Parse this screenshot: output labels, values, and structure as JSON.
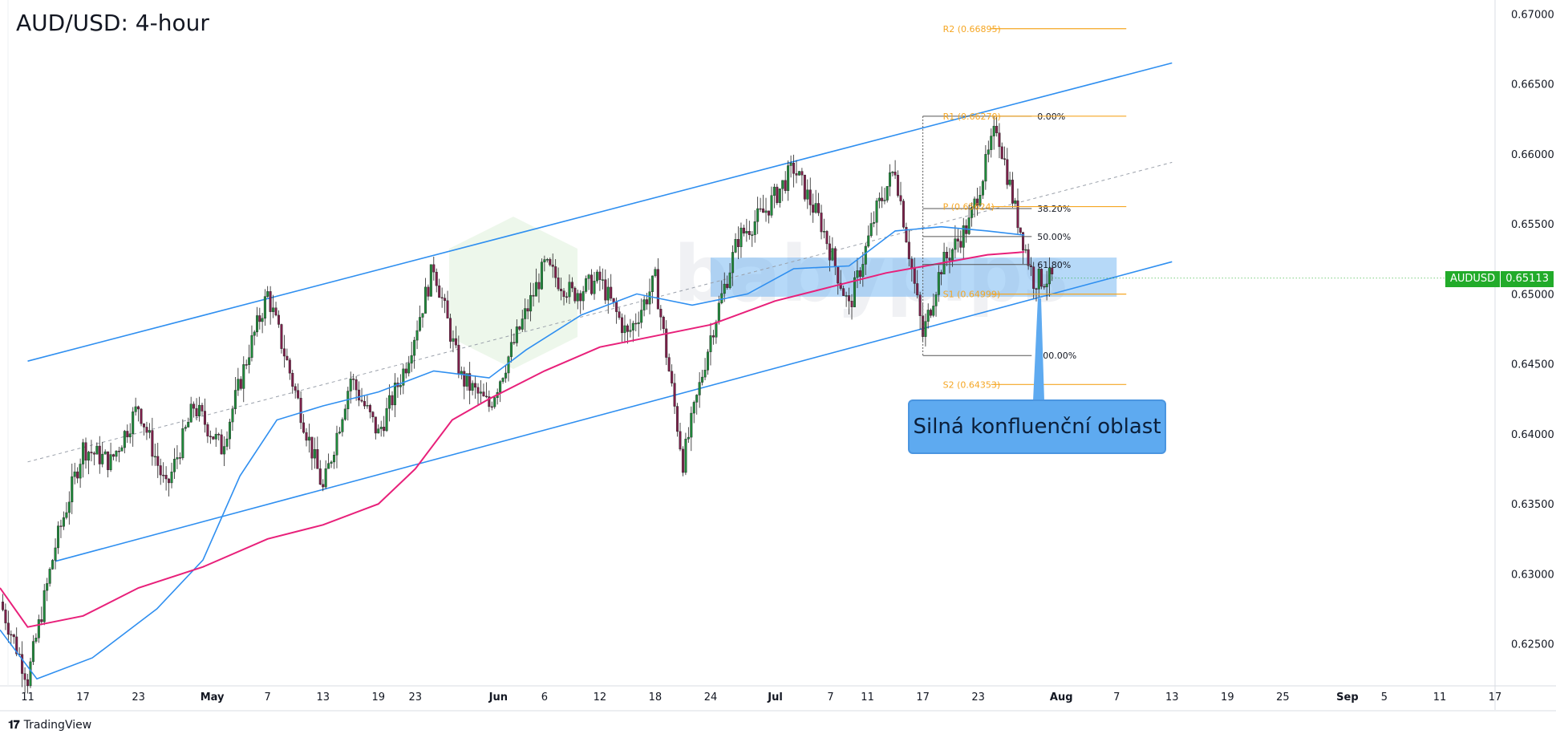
{
  "header": {
    "title": "AUD/USD: 4-hour"
  },
  "footer": {
    "brand": "TradingView"
  },
  "callout": {
    "text": "Silná konfluenční oblast"
  },
  "price_badge": {
    "symbol": "AUDUSD",
    "value": "0.65113",
    "color": "#22ab2a"
  },
  "chart_data": {
    "type": "candlestick",
    "title": "AUD/USD: 4-hour",
    "xlabel": "",
    "ylabel": "",
    "ylim": [
      0.622,
      0.671
    ],
    "y_ticks": [
      "0.62500",
      "0.63000",
      "0.63500",
      "0.64000",
      "0.64500",
      "0.65000",
      "0.65500",
      "0.66000",
      "0.66500",
      "0.67000"
    ],
    "x_ticks": [
      {
        "label": "11",
        "date": "2023-04-11"
      },
      {
        "label": "17",
        "date": "2023-04-17"
      },
      {
        "label": "23",
        "date": "2023-04-23"
      },
      {
        "label": "May",
        "date": "2023-05-01"
      },
      {
        "label": "7",
        "date": "2023-05-07"
      },
      {
        "label": "13",
        "date": "2023-05-13"
      },
      {
        "label": "19",
        "date": "2023-05-19"
      },
      {
        "label": "23",
        "date": "2023-05-23"
      },
      {
        "label": "Jun",
        "date": "2023-06-01"
      },
      {
        "label": "6",
        "date": "2023-06-06"
      },
      {
        "label": "12",
        "date": "2023-06-12"
      },
      {
        "label": "18",
        "date": "2023-06-18"
      },
      {
        "label": "24",
        "date": "2023-06-24"
      },
      {
        "label": "Jul",
        "date": "2023-07-01"
      },
      {
        "label": "7",
        "date": "2023-07-07"
      },
      {
        "label": "11",
        "date": "2023-07-11"
      },
      {
        "label": "17",
        "date": "2023-07-17"
      },
      {
        "label": "23",
        "date": "2023-07-23"
      },
      {
        "label": "Aug",
        "date": "2023-08-01"
      },
      {
        "label": "7",
        "date": "2023-08-07"
      },
      {
        "label": "13",
        "date": "2023-08-13"
      },
      {
        "label": "19",
        "date": "2023-08-19"
      },
      {
        "label": "25",
        "date": "2023-08-25"
      },
      {
        "label": "Sep",
        "date": "2023-09-01"
      },
      {
        "label": "5",
        "date": "2023-09-05"
      },
      {
        "label": "11",
        "date": "2023-09-11"
      },
      {
        "label": "17",
        "date": "2023-09-17"
      }
    ],
    "x_range": [
      "2023-04-08",
      "2023-09-17"
    ],
    "price_path": [
      [
        "2023-04-08",
        0.628
      ],
      [
        "2023-04-11",
        0.6225
      ],
      [
        "2023-04-14",
        0.632
      ],
      [
        "2023-04-17",
        0.639
      ],
      [
        "2023-04-20",
        0.638
      ],
      [
        "2023-04-23",
        0.642
      ],
      [
        "2023-04-26",
        0.636
      ],
      [
        "2023-04-29",
        0.642
      ],
      [
        "2023-05-02",
        0.639
      ],
      [
        "2023-05-05",
        0.646
      ],
      [
        "2023-05-07",
        0.65
      ],
      [
        "2023-05-10",
        0.643
      ],
      [
        "2023-05-13",
        0.636
      ],
      [
        "2023-05-16",
        0.644
      ],
      [
        "2023-05-19",
        0.64
      ],
      [
        "2023-05-22",
        0.645
      ],
      [
        "2023-05-25",
        0.652
      ],
      [
        "2023-05-28",
        0.644
      ],
      [
        "2023-05-31",
        0.642
      ],
      [
        "2023-06-03",
        0.647
      ],
      [
        "2023-06-06",
        0.652
      ],
      [
        "2023-06-09",
        0.65
      ],
      [
        "2023-06-12",
        0.651
      ],
      [
        "2023-06-15",
        0.647
      ],
      [
        "2023-06-18",
        0.651
      ],
      [
        "2023-06-21",
        0.638
      ],
      [
        "2023-06-24",
        0.647
      ],
      [
        "2023-06-27",
        0.654
      ],
      [
        "2023-06-30",
        0.656
      ],
      [
        "2023-07-03",
        0.659
      ],
      [
        "2023-07-06",
        0.655
      ],
      [
        "2023-07-09",
        0.649
      ],
      [
        "2023-07-12",
        0.656
      ],
      [
        "2023-07-14",
        0.659
      ],
      [
        "2023-07-17",
        0.647
      ],
      [
        "2023-07-19",
        0.652
      ],
      [
        "2023-07-22",
        0.655
      ],
      [
        "2023-07-25",
        0.662
      ],
      [
        "2023-07-27",
        0.656
      ],
      [
        "2023-07-29",
        0.651
      ],
      [
        "2023-07-31",
        0.6511
      ]
    ],
    "series": [
      {
        "name": "",
        "color": "#2f8ff0",
        "points": [
          [
            "2023-04-08",
            0.626
          ],
          [
            "2023-04-12",
            0.6225
          ],
          [
            "2023-04-18",
            0.624
          ],
          [
            "2023-04-25",
            0.6275
          ],
          [
            "2023-04-30",
            0.631
          ],
          [
            "2023-05-04",
            0.637
          ],
          [
            "2023-05-08",
            0.641
          ],
          [
            "2023-05-13",
            0.642
          ],
          [
            "2023-05-19",
            0.643
          ],
          [
            "2023-05-25",
            0.6445
          ],
          [
            "2023-05-31",
            0.644
          ],
          [
            "2023-06-04",
            0.646
          ],
          [
            "2023-06-10",
            0.6485
          ],
          [
            "2023-06-16",
            0.65
          ],
          [
            "2023-06-22",
            0.6492
          ],
          [
            "2023-06-28",
            0.65
          ],
          [
            "2023-07-03",
            0.6518
          ],
          [
            "2023-07-09",
            0.652
          ],
          [
            "2023-07-14",
            0.6545
          ],
          [
            "2023-07-19",
            0.6548
          ],
          [
            "2023-07-24",
            0.6545
          ],
          [
            "2023-07-28",
            0.6542
          ]
        ]
      },
      {
        "name": "",
        "color": "#e8207a",
        "points": [
          [
            "2023-04-08",
            0.629
          ],
          [
            "2023-04-11",
            0.6262
          ],
          [
            "2023-04-17",
            0.627
          ],
          [
            "2023-04-23",
            0.629
          ],
          [
            "2023-04-30",
            0.6305
          ],
          [
            "2023-05-07",
            0.6325
          ],
          [
            "2023-05-13",
            0.6335
          ],
          [
            "2023-05-19",
            0.635
          ],
          [
            "2023-05-23",
            0.6375
          ],
          [
            "2023-05-27",
            0.641
          ],
          [
            "2023-05-31",
            0.6425
          ],
          [
            "2023-06-06",
            0.6445
          ],
          [
            "2023-06-12",
            0.6462
          ],
          [
            "2023-06-18",
            0.647
          ],
          [
            "2023-06-24",
            0.6478
          ],
          [
            "2023-07-01",
            0.6495
          ],
          [
            "2023-07-07",
            0.6505
          ],
          [
            "2023-07-13",
            0.6515
          ],
          [
            "2023-07-19",
            0.6522
          ],
          [
            "2023-07-24",
            0.6528
          ],
          [
            "2023-07-28",
            0.653
          ]
        ]
      }
    ],
    "channel": {
      "color": "#2f8ff0",
      "upper": [
        [
          "2023-04-11",
          0.6452
        ],
        [
          "2023-08-13",
          0.6665
        ]
      ],
      "lower": [
        [
          "2023-04-14",
          0.6309
        ],
        [
          "2023-08-13",
          0.6523
        ]
      ],
      "mid_dashed": [
        [
          "2023-04-11",
          0.638
        ],
        [
          "2023-08-13",
          0.6594
        ]
      ]
    },
    "confluence_zone": {
      "x": [
        "2023-06-24",
        "2023-08-07"
      ],
      "y": [
        0.6498,
        0.6526
      ],
      "color": "#5eaaf0"
    },
    "fibonacci": {
      "x": [
        "2023-07-17",
        "2023-08-13"
      ],
      "levels": [
        {
          "label": "0.00%",
          "value": 0.6627
        },
        {
          "label": "38.20%",
          "value": 0.6561
        },
        {
          "label": "50.00%",
          "value": 0.6541
        },
        {
          "label": "61.80%",
          "value": 0.6521
        },
        {
          "label": "100.00%",
          "value": 0.6456
        }
      ]
    },
    "pivots": {
      "color": "#f5a623",
      "x": [
        "2023-07-17",
        "2023-08-07"
      ],
      "levels": [
        {
          "label": "R2 (0.66895)",
          "value": 0.66895
        },
        {
          "label": "R1 (0.66270)",
          "value": 0.6627
        },
        {
          "label": "P (0.65624)",
          "value": 0.65624
        },
        {
          "label": "S1 (0.64999)",
          "value": 0.64999
        },
        {
          "label": "S2 (0.64353)",
          "value": 0.64353
        }
      ]
    },
    "last_price": 0.65113
  }
}
